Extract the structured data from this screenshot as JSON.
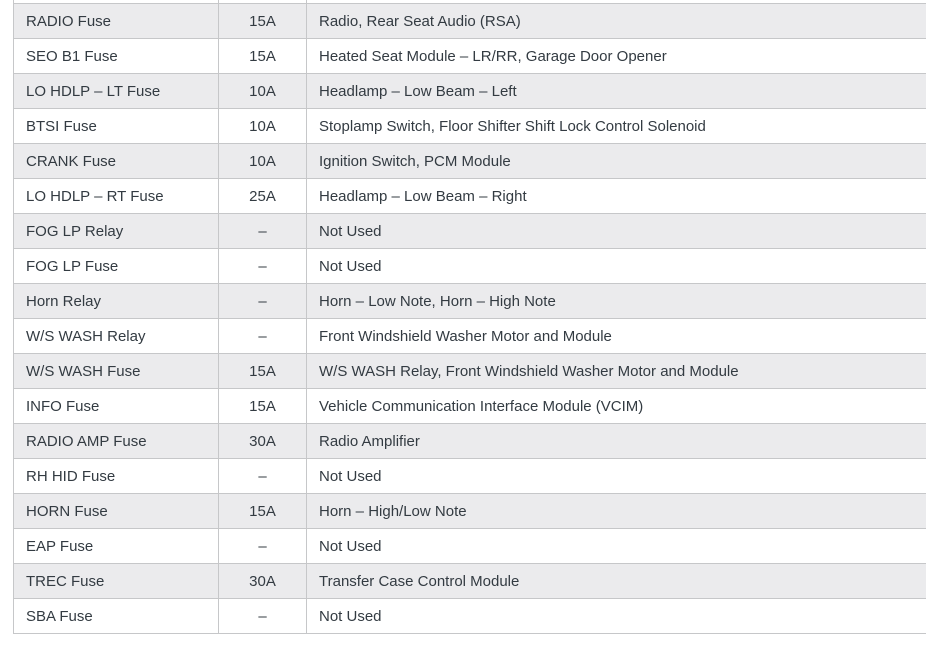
{
  "colors": {
    "row_alt_bg": "#ebebed",
    "row_bg": "#ffffff",
    "border": "#c6c7c9",
    "text": "#333b42"
  },
  "table": {
    "columns": [
      "name",
      "amps",
      "description"
    ],
    "rows": [
      {
        "name": "RADIO Fuse",
        "amps": "15A",
        "description": "Radio, Rear Seat Audio (RSA)"
      },
      {
        "name": "SEO B1 Fuse",
        "amps": "15A",
        "description": "Heated Seat Module – LR/RR, Garage Door Opener"
      },
      {
        "name": "LO HDLP – LT Fuse",
        "amps": "10A",
        "description": "Headlamp – Low Beam – Left"
      },
      {
        "name": "BTSI Fuse",
        "amps": "10A",
        "description": "Stoplamp Switch, Floor Shifter Shift Lock Control Solenoid"
      },
      {
        "name": "CRANK Fuse",
        "amps": "10A",
        "description": "Ignition Switch, PCM Module"
      },
      {
        "name": "LO HDLP – RT Fuse",
        "amps": "25A",
        "description": "Headlamp – Low Beam – Right"
      },
      {
        "name": "FOG LP Relay",
        "amps": "–",
        "description": "Not Used"
      },
      {
        "name": "FOG LP Fuse",
        "amps": "–",
        "description": "Not Used"
      },
      {
        "name": "Horn Relay",
        "amps": "–",
        "description": "Horn – Low Note, Horn – High Note"
      },
      {
        "name": "W/S WASH Relay",
        "amps": "–",
        "description": "Front Windshield Washer Motor and Module"
      },
      {
        "name": "W/S WASH Fuse",
        "amps": "15A",
        "description": "W/S WASH Relay, Front Windshield Washer Motor and Module"
      },
      {
        "name": "INFO Fuse",
        "amps": "15A",
        "description": "Vehicle Communication Interface Module (VCIM)"
      },
      {
        "name": "RADIO AMP Fuse",
        "amps": "30A",
        "description": "Radio Amplifier"
      },
      {
        "name": "RH HID Fuse",
        "amps": "–",
        "description": "Not Used"
      },
      {
        "name": "HORN Fuse",
        "amps": "15A",
        "description": "Horn – High/Low Note"
      },
      {
        "name": "EAP Fuse",
        "amps": "–",
        "description": "Not Used"
      },
      {
        "name": "TREC Fuse",
        "amps": "30A",
        "description": "Transfer Case Control Module"
      },
      {
        "name": "SBA Fuse",
        "amps": "–",
        "description": "Not Used"
      }
    ]
  }
}
